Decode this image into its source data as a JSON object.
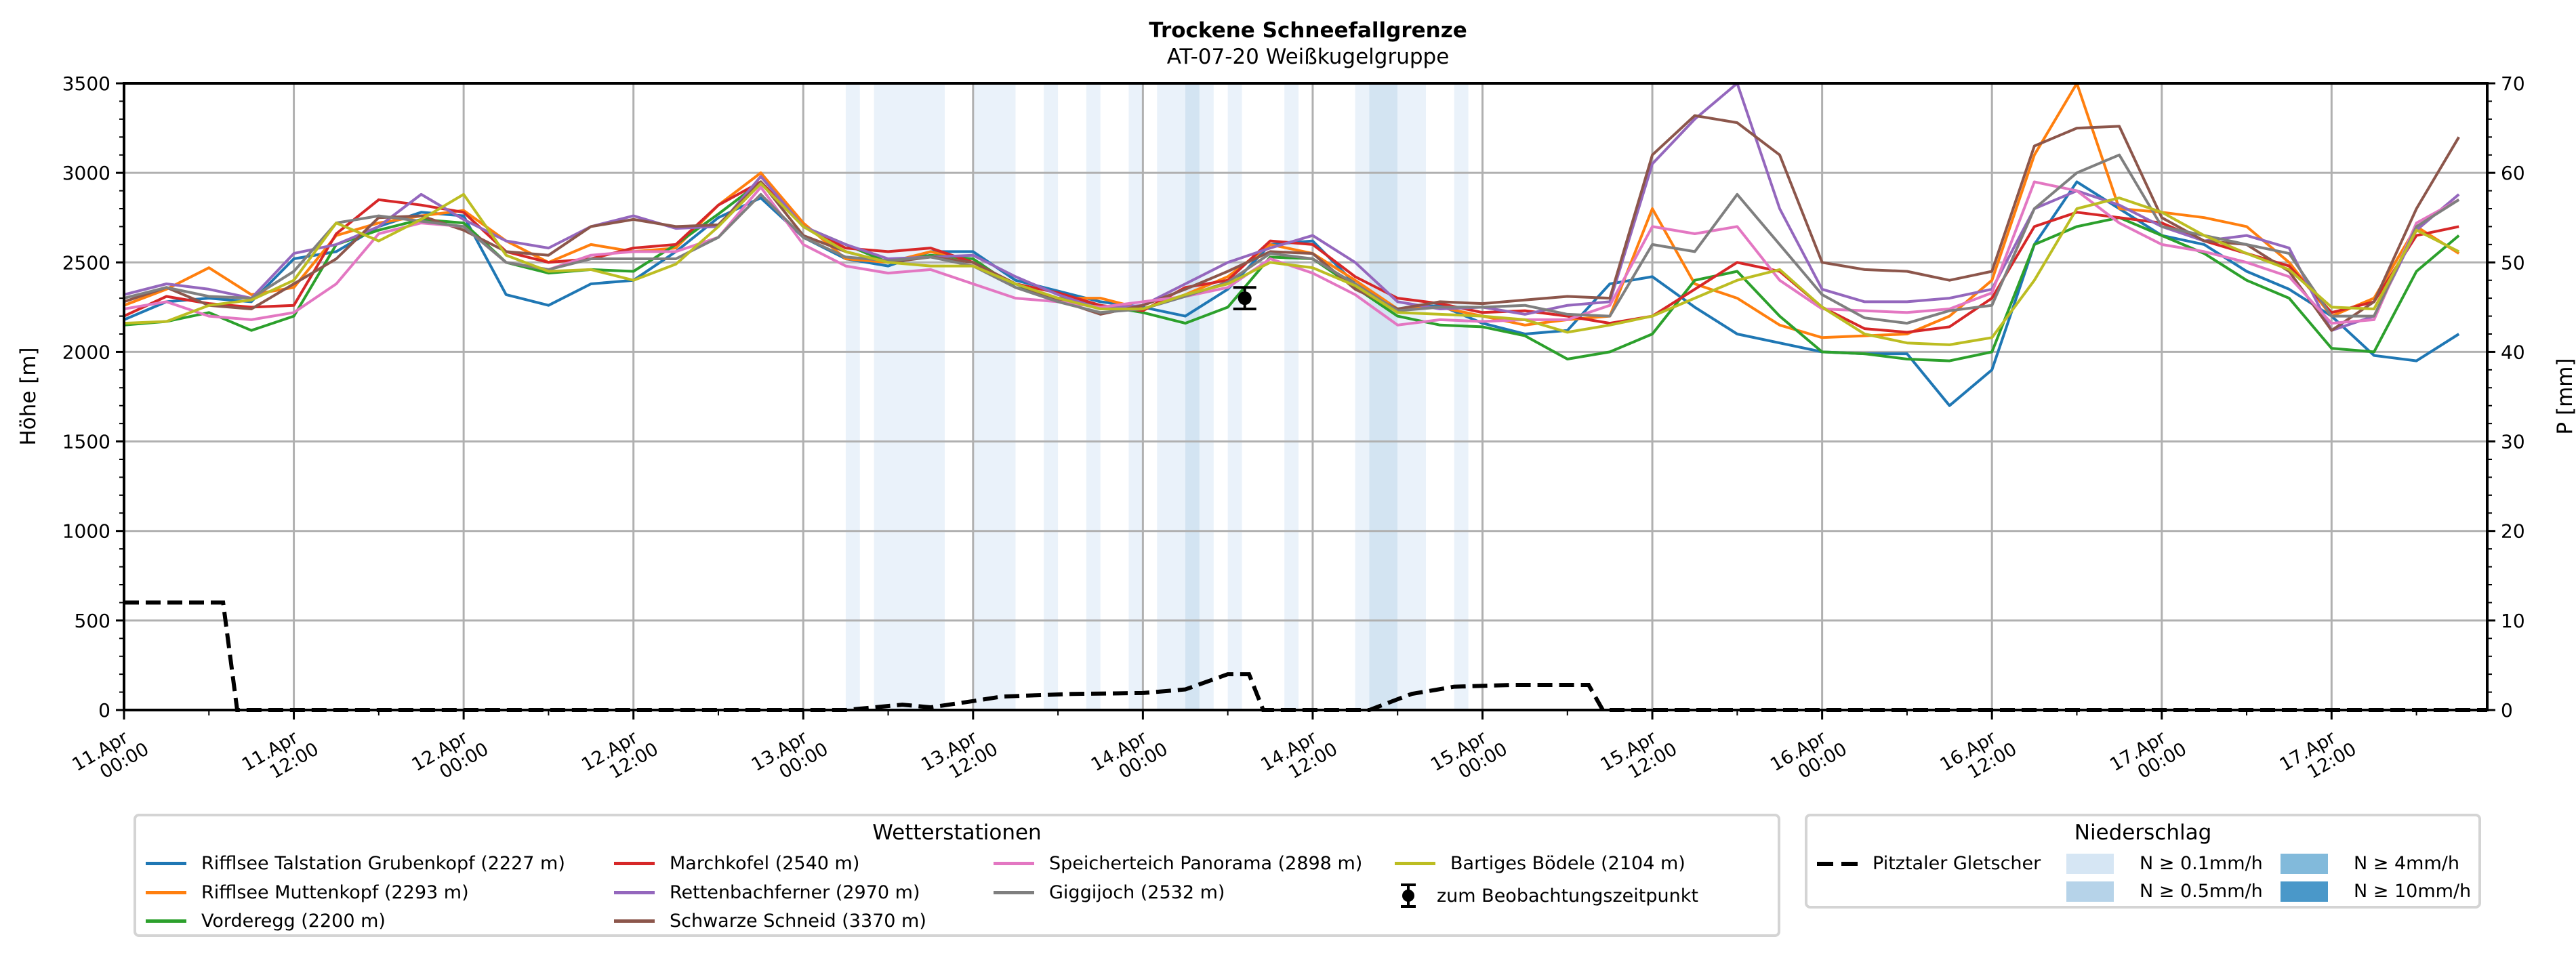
{
  "chart_data": {
    "type": "line",
    "title": "Trockene Schneefallgrenze",
    "subtitle": "AT-07-20 Weißkugelgruppe",
    "ylabel": "Höhe [m]",
    "ylabel_right": "P [mm]",
    "ylim": [
      0,
      3500
    ],
    "ylim_right": [
      0,
      70
    ],
    "yticks": [
      "0",
      "500",
      "1000",
      "1500",
      "2000",
      "2500",
      "3000",
      "3500"
    ],
    "yticks_right": [
      "0",
      "10",
      "20",
      "30",
      "40",
      "50",
      "60",
      "70"
    ],
    "xlim_hours": [
      0,
      167
    ],
    "xticks": [
      {
        "hour": 0,
        "line1": "11.Apr",
        "line2": "00:00"
      },
      {
        "hour": 12,
        "line1": "11.Apr",
        "line2": "12:00"
      },
      {
        "hour": 24,
        "line1": "12.Apr",
        "line2": "00:00"
      },
      {
        "hour": 36,
        "line1": "12.Apr",
        "line2": "12:00"
      },
      {
        "hour": 48,
        "line1": "13.Apr",
        "line2": "00:00"
      },
      {
        "hour": 60,
        "line1": "13.Apr",
        "line2": "12:00"
      },
      {
        "hour": 72,
        "line1": "14.Apr",
        "line2": "00:00"
      },
      {
        "hour": 84,
        "line1": "14.Apr",
        "line2": "12:00"
      },
      {
        "hour": 96,
        "line1": "15.Apr",
        "line2": "00:00"
      },
      {
        "hour": 108,
        "line1": "15.Apr",
        "line2": "12:00"
      },
      {
        "hour": 120,
        "line1": "16.Apr",
        "line2": "00:00"
      },
      {
        "hour": 132,
        "line1": "16.Apr",
        "line2": "12:00"
      },
      {
        "hour": 144,
        "line1": "17.Apr",
        "line2": "00:00"
      },
      {
        "hour": 156,
        "line1": "17.Apr",
        "line2": "12:00"
      }
    ],
    "grid": true,
    "x_hours_step": 3,
    "series": [
      {
        "name": "Rifflsee Talstation Grubenkopf (2227 m)",
        "color": "#1f77b4",
        "values": [
          2180,
          2280,
          2300,
          2280,
          2520,
          2560,
          2700,
          2780,
          2760,
          2320,
          2260,
          2380,
          2400,
          2560,
          2750,
          2860,
          2640,
          2520,
          2480,
          2560,
          2560,
          2400,
          2340,
          2280,
          2250,
          2200,
          2350,
          2600,
          2620,
          2380,
          2240,
          2260,
          2160,
          2100,
          2120,
          2380,
          2420,
          2250,
          2100,
          2050,
          2000,
          1990,
          1990,
          1700,
          1900,
          2600,
          2950,
          2800,
          2650,
          2600,
          2450,
          2350,
          2200,
          1980,
          1950,
          2100
        ]
      },
      {
        "name": "Rifflsee Muttenkopf (2293 m)",
        "color": "#ff7f0e",
        "values": [
          2260,
          2350,
          2470,
          2320,
          2360,
          2650,
          2720,
          2760,
          2790,
          2620,
          2500,
          2600,
          2560,
          2580,
          2820,
          3000,
          2720,
          2520,
          2500,
          2560,
          2500,
          2380,
          2300,
          2300,
          2240,
          2320,
          2420,
          2600,
          2550,
          2400,
          2240,
          2250,
          2200,
          2150,
          2180,
          2200,
          2800,
          2380,
          2300,
          2150,
          2080,
          2090,
          2100,
          2200,
          2400,
          3100,
          3500,
          2800,
          2780,
          2750,
          2700,
          2500,
          2200,
          2300,
          2700,
          2550
        ]
      },
      {
        "name": "Vorderegg (2200 m)",
        "color": "#2ca02c",
        "values": [
          2150,
          2170,
          2220,
          2120,
          2200,
          2600,
          2680,
          2740,
          2720,
          2500,
          2440,
          2460,
          2450,
          2600,
          2770,
          2950,
          2700,
          2600,
          2500,
          2540,
          2520,
          2360,
          2300,
          2260,
          2220,
          2160,
          2250,
          2530,
          2520,
          2360,
          2200,
          2150,
          2140,
          2090,
          1960,
          2000,
          2100,
          2400,
          2450,
          2200,
          2000,
          1990,
          1960,
          1950,
          2000,
          2600,
          2700,
          2750,
          2650,
          2550,
          2400,
          2300,
          2020,
          2000,
          2450,
          2650
        ]
      },
      {
        "name": "Marchkofel (2540 m)",
        "color": "#d62728",
        "values": [
          2200,
          2310,
          2270,
          2250,
          2260,
          2660,
          2850,
          2820,
          2780,
          2560,
          2500,
          2520,
          2580,
          2600,
          2820,
          2950,
          2700,
          2580,
          2560,
          2580,
          2500,
          2380,
          2330,
          2260,
          2230,
          2360,
          2400,
          2620,
          2600,
          2420,
          2300,
          2270,
          2220,
          2230,
          2200,
          2160,
          2200,
          2350,
          2500,
          2450,
          2250,
          2130,
          2110,
          2140,
          2300,
          2700,
          2780,
          2750,
          2720,
          2620,
          2550,
          2480,
          2220,
          2280,
          2650,
          2700
        ]
      },
      {
        "name": "Rettenbachferner (2970 m)",
        "color": "#9467bd",
        "values": [
          2320,
          2380,
          2350,
          2300,
          2550,
          2600,
          2700,
          2880,
          2740,
          2620,
          2580,
          2700,
          2760,
          2690,
          2700,
          2980,
          2700,
          2600,
          2520,
          2530,
          2540,
          2420,
          2320,
          2240,
          2260,
          2380,
          2500,
          2580,
          2650,
          2500,
          2280,
          2240,
          2250,
          2210,
          2260,
          2280,
          3050,
          3300,
          3500,
          2800,
          2350,
          2280,
          2280,
          2300,
          2350,
          2800,
          2900,
          2820,
          2700,
          2620,
          2650,
          2580,
          2120,
          2200,
          2680,
          2880
        ]
      },
      {
        "name": "Schwarze Schneid (3370 m)",
        "color": "#8c564b",
        "values": [
          2280,
          2360,
          2260,
          2240,
          2380,
          2520,
          2750,
          2760,
          2680,
          2560,
          2540,
          2700,
          2740,
          2700,
          2710,
          2950,
          2650,
          2560,
          2500,
          2530,
          2500,
          2380,
          2290,
          2210,
          2260,
          2350,
          2450,
          2560,
          2550,
          2350,
          2240,
          2280,
          2270,
          2290,
          2310,
          2300,
          3100,
          3320,
          3280,
          3100,
          2500,
          2460,
          2450,
          2400,
          2450,
          3150,
          3250,
          3260,
          2750,
          2620,
          2600,
          2450,
          2120,
          2280,
          2800,
          3200
        ]
      },
      {
        "name": "Speicherteich Panorama (2898 m)",
        "color": "#e377c2",
        "values": [
          2240,
          2280,
          2200,
          2180,
          2220,
          2380,
          2660,
          2720,
          2700,
          2500,
          2460,
          2540,
          2560,
          2560,
          2640,
          2920,
          2600,
          2480,
          2440,
          2460,
          2380,
          2300,
          2280,
          2250,
          2280,
          2310,
          2360,
          2520,
          2440,
          2320,
          2150,
          2180,
          2170,
          2180,
          2180,
          2260,
          2700,
          2660,
          2700,
          2400,
          2240,
          2230,
          2220,
          2240,
          2330,
          2950,
          2900,
          2720,
          2600,
          2560,
          2500,
          2420,
          2160,
          2180,
          2720,
          2850
        ]
      },
      {
        "name": "Giggijoch (2532 m)",
        "color": "#7f7f7f",
        "values": [
          2300,
          2360,
          2310,
          2300,
          2450,
          2720,
          2760,
          2730,
          2700,
          2500,
          2460,
          2520,
          2520,
          2520,
          2640,
          2880,
          2640,
          2530,
          2510,
          2530,
          2480,
          2360,
          2280,
          2220,
          2240,
          2310,
          2390,
          2550,
          2520,
          2380,
          2230,
          2250,
          2250,
          2260,
          2210,
          2200,
          2600,
          2560,
          2880,
          2600,
          2320,
          2190,
          2160,
          2230,
          2260,
          2800,
          3000,
          3100,
          2700,
          2650,
          2600,
          2550,
          2200,
          2200,
          2700,
          2850
        ]
      },
      {
        "name": "Bartiges Bödele (2104 m)",
        "color": "#bcbd22",
        "values": [
          2160,
          2170,
          2260,
          2290,
          2400,
          2720,
          2620,
          2740,
          2880,
          2540,
          2450,
          2460,
          2400,
          2490,
          2700,
          2940,
          2700,
          2560,
          2500,
          2480,
          2480,
          2380,
          2300,
          2240,
          2240,
          2320,
          2380,
          2500,
          2470,
          2370,
          2220,
          2210,
          2200,
          2180,
          2110,
          2150,
          2200,
          2300,
          2400,
          2460,
          2250,
          2100,
          2050,
          2040,
          2080,
          2400,
          2800,
          2860,
          2780,
          2650,
          2550,
          2460,
          2250,
          2240,
          2680,
          2560
        ]
      }
    ],
    "precip_line": {
      "name": "Pitztaler Gletscher",
      "unit": "mm",
      "points": [
        [
          0,
          12
        ],
        [
          7,
          12
        ],
        [
          8,
          0
        ],
        [
          51,
          0
        ],
        [
          55,
          0.6
        ],
        [
          57,
          0.3
        ],
        [
          60,
          1.0
        ],
        [
          62,
          1.5
        ],
        [
          67,
          1.8
        ],
        [
          72,
          1.9
        ],
        [
          75,
          2.3
        ],
        [
          78,
          4.0
        ],
        [
          79.5,
          4.0
        ],
        [
          80.5,
          0
        ],
        [
          88,
          0
        ],
        [
          91,
          1.8
        ],
        [
          94,
          2.6
        ],
        [
          98,
          2.8
        ],
        [
          103.5,
          2.8
        ],
        [
          104.5,
          0
        ],
        [
          167,
          0
        ]
      ]
    },
    "observation": {
      "label": "zum Beobachtungszeitpunkt",
      "hour": 79.2,
      "value": 2300,
      "err": 60
    },
    "precip_bands": [
      {
        "start": 51.0,
        "end": 52.0,
        "level": 1
      },
      {
        "start": 53.0,
        "end": 58.0,
        "level": 1
      },
      {
        "start": 60.0,
        "end": 63.0,
        "level": 1
      },
      {
        "start": 65.0,
        "end": 66.0,
        "level": 1
      },
      {
        "start": 68.0,
        "end": 69.0,
        "level": 1
      },
      {
        "start": 71.0,
        "end": 72.0,
        "level": 1
      },
      {
        "start": 73.0,
        "end": 75.0,
        "level": 1
      },
      {
        "start": 75.0,
        "end": 76.0,
        "level": 2
      },
      {
        "start": 76.0,
        "end": 77.0,
        "level": 1
      },
      {
        "start": 78.0,
        "end": 79.0,
        "level": 1
      },
      {
        "start": 82.0,
        "end": 83.0,
        "level": 1
      },
      {
        "start": 87.0,
        "end": 88.0,
        "level": 1
      },
      {
        "start": 88.0,
        "end": 90.0,
        "level": 2
      },
      {
        "start": 90.0,
        "end": 92.0,
        "level": 1
      },
      {
        "start": 94.0,
        "end": 95.0,
        "level": 1
      }
    ]
  },
  "legend_stations": {
    "title": "Wetterstationen",
    "observation_label": "zum Beobachtungszeitpunkt"
  },
  "legend_precip": {
    "title": "Niederschlag",
    "line_label": "Pitztaler Gletscher",
    "levels": [
      {
        "label": "N ≥ 0.1mm/h",
        "color": "#d6e6f4"
      },
      {
        "label": "N ≥ 0.5mm/h",
        "color": "#b6d3e9"
      },
      {
        "label": "N ≥ 4mm/h",
        "color": "#82badb"
      },
      {
        "label": "N ≥ 10mm/h",
        "color": "#4a98c9"
      }
    ]
  }
}
